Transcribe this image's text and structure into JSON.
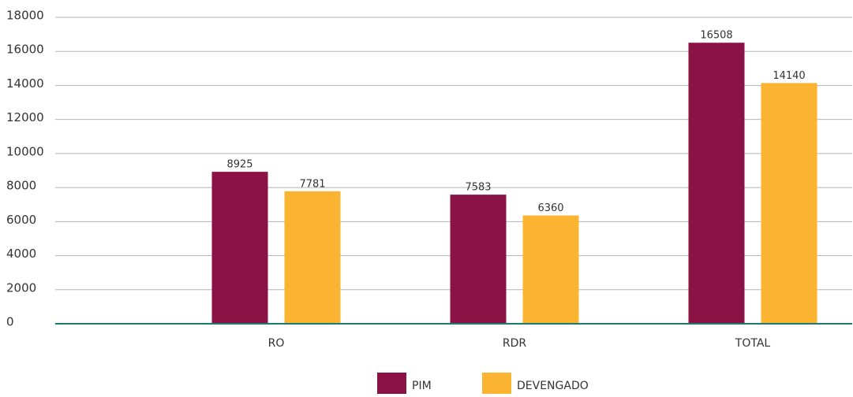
{
  "chart_data": {
    "type": "bar",
    "categories": [
      "RO",
      "RDR",
      "TOTAL"
    ],
    "series": [
      {
        "name": "PIM",
        "color": "#8b1245",
        "values": [
          8925,
          7583,
          16508
        ]
      },
      {
        "name": "DEVENGADO",
        "color": "#fbb432",
        "values": [
          7781,
          6360,
          14140
        ]
      }
    ],
    "ylim": [
      0,
      18000
    ],
    "yticks": [
      0,
      2000,
      4000,
      6000,
      8000,
      10000,
      12000,
      14000,
      16000,
      18000
    ],
    "grid": true
  }
}
